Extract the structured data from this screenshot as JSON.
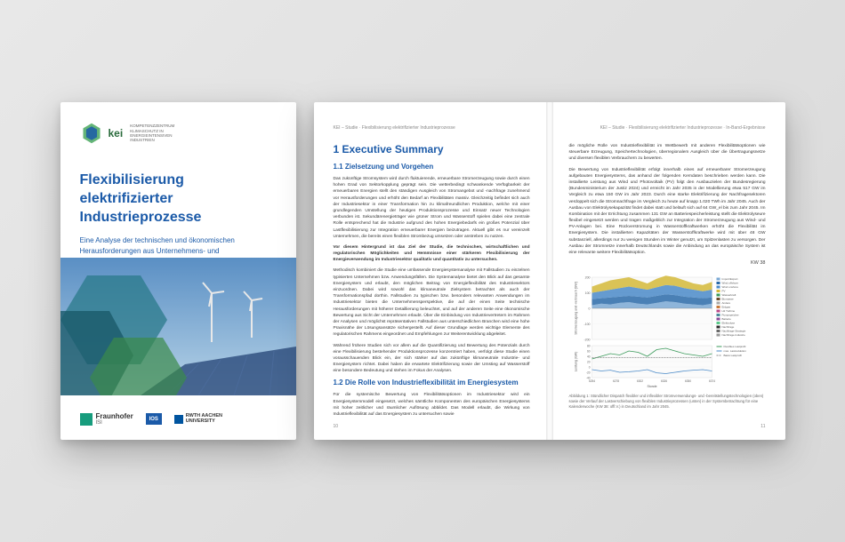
{
  "cover": {
    "logo_text": "kei",
    "logo_sub1": "KOMPETENZZENTRUM",
    "logo_sub2": "KLIMASCHUTZ IN",
    "logo_sub3": "ENERGIEINTENSIVEN",
    "logo_sub4": "INDUSTRIEN",
    "title": "Flexibilisierung elektrifizierter Industrieprozesse",
    "subtitle": "Eine Analyse der technischen und ökonomischen Herausforderungen aus Unternehmens- und Systemperspektive",
    "logos": {
      "fraunhofer": "Fraunhofer",
      "fraunhofer_sub": "ISI",
      "ios": "IOS",
      "rwth1": "RWTH AACHEN",
      "rwth2": "UNIVERSITY"
    },
    "hex_colors": {
      "outer": "#4aa860",
      "inner": "#1b5aa8"
    },
    "image_colors": {
      "sky_top": "#5a8fc4",
      "sky_bot": "#b8d4e8",
      "hex1": "#2a7a8a",
      "hex2": "#1a5a6a",
      "hex3": "#3a8a4a",
      "turbine": "#e8e8e8",
      "panel": "#2a4a7a"
    }
  },
  "left_page": {
    "header": "KEI – Studie · Flexibilisierung elektrifizierter Industrieprozesse",
    "h1": "1  Executive Summary",
    "h2a": "1.1  Zielsetzung und Vorgehen",
    "p1": "Das zukünftige Stromsystem wird durch fluktuierende, erneuerbare Stromerzeugung sowie durch einen hohen Grad von Sektorkopplung geprägt sein. Die wetterbedingt schwankende Verfügbarkeit der erneuerbaren Energien stellt den ständigen Ausgleich von Stromangebot und -nachfrage zunehmend vor Herausforderungen und erhöht den Bedarf an Flexibilitäten massiv. Gleichzeitig befindet sich auch der Industriesektor in einer Transformation hin zu klimafreundlichen Produktion, welche mit einer grundlegenden Umstellung der heutigen Produktionsprozesse und Einsatz neuer Technologien verbunden ist. Sekundärenergieträger wie grüner Strom und Wasserstoff spielen dabei eine zentrale Rolle entsprechend hat die Industrie aufgrund des hohen Energiebedarfs ein großes Potenzial über Lastflexibilisierung zur Integration erneuerbarer Energien beizutragen. Aktuell gibt es nur vereinzelt Unternehmen, die bereits einen flexiblen Strombezug umsetzen oder anstreben zu nutzen.",
    "p2": "Vor diesem Hintergrund ist das Ziel der Studie, die technischen, wirtschaftlichen und regulatorischen Möglichkeiten und Hemmnisse einer stärkeren Flexibilisierung der Energieverwendung im Industriesektor qualitativ und quantitativ zu untersuchen.",
    "p3": "Methodisch kombiniert die Studie eine umfassende Energiesystemanalyse mit Fallstudien zu einzelnen typisierten Unternehmen bzw. Anwendungsfällen. Die Systemanalyse bietet den Blick auf das gesamte Energiesystem und erlaubt, den möglichen Beitrag von Energieflexibilität des Industriesektors einzuordnen. Dabei wird sowohl das klimaneutrale Zielsystem betrachtet als auch der Transformationspfad dorthin. Fallstudien zu typischen bzw. besonders relevanten Anwendungen im Industriesektor bieten die Unternehmensperspektive, die auf der einen Seite technische Herausforderungen mit höherer Detaillierung beleuchtet, und auf der anderen Seite eine ökonomische Bewertung aus Sicht der Unternehmen erlaubt. Über die Einbindung von Industrievertretern im Rahmen der Analysen und möglichst repräsentativen Fallstudien aus unterschiedlichen Branchen wird eine hohe Praxisnähe der Lösungsansätze sichergestellt. Auf dieser Grundlage werden wichtige Elemente des regulatorischen Rahmens eingeordnet und Empfehlungen zur Weiterentwicklung abgeleitet.",
    "p4": "Während frühere Studien sich vor allem auf die Quantifizierung und Bewertung des Potenzials durch eine Flexibilisierung bestehender Produktionsprozesse konzentriert haben, verfolgt diese Studie einen vorausschauenden Blick ein, der sich stärker auf das zukünftige klimaneutrale Industrie- und Energiesystem richtet. Dabei haben die erwartete Elektrifizierung sowie der Umstieg auf Wasserstoff eine besondere Bedeutung und stehen im Fokus der Analysen.",
    "h2b": "1.2  Die Rolle von Industrieflexibilität im Energiesystem",
    "p5": "Für die systemische Bewertung von Flexibilitätsoptionen im Industriesektor wird ein Energiesystemmodell eingesetzt, welches sämtliche Komponenten des europäischen Energiesystems mit hoher zeitlicher und räumlicher Auflösung abbildet. Das Modell erlaubt, die Wirkung von Industrieflexibilität auf das Energiesystem zu untersuchen sowie",
    "pagenum": "10"
  },
  "right_page": {
    "header": "KEI – Studie · Flexibilisierung elektrifizierter Industrieprozesse · In-Band-Ergebnisse",
    "p1": "die mögliche Rolle von Industrieflexibilität im Wettbewerb mit anderen Flexibilitätsoptionen wie steuerbare Erzeugung, Speichertechnologien, überregionalem Ausgleich über die Übertragungsnetze und diversen flexiblen Verbrauchern zu bewerten.",
    "p2": "Die Bewertung von Industrieflexibilität erfolgt innerhalb eines auf erneuerbarer Stromerzeugung aufgebauten Energiesystems, das anhand der folgenden Kerndaten beschrieben werden kann. Die installierte Leistung aus Wind und Photovoltaik (PV) folgt den Ausbauzielen der Bundesregierung (Bundesministerium der Justiz 2024) und erreicht im Jahr 2035 in der Modellierung etwa 517 GW im Vergleich zu etwa 150 GW im Jahr 2023. Durch eine starke Elektrifizierung der Nachfragesektoren verdoppelt sich die Stromnachfrage im Vergleich zu heute auf knapp 1.020 TWh im Jahr 2045. Auch der Ausbau von Elektrolysekapazität findet dabei statt und beläuft sich auf 64 GW_el bis zum Jahr 2045. Im Kombination mit der Errichtung zusammen 131 GW an Batteriespeicherleistung stellt die Elektrolyseure flexibel eingesetzt werden und tragen maßgeblich zur Integration der Stromerzeugung aus Wind- und PV-Anlagen bei. Eine Rückverstromung in Wasserstoffkraftwerken erhöht die Flexibilität im Energiesystem. Die installierten Kapazitäten der Wasserstoffkraftwerke wird mit über 48 GW substanziell, allerdings nur zu wenigen Stunden im Winter genutzt, um Spitzenlasten zu versorgen. Der Ausbau der Stromnetze innerhalb Deutschlands sowie die Anbindung an das europäische System ist eine relevante weitere Flexibilitätsoption.",
    "chart": {
      "title": "KW 38",
      "legend": [
        "Import/Export",
        "Wind offshore",
        "Wind onshore",
        "PV",
        "Wasserkraft",
        "Biomasse",
        "Andere",
        "Erdgas",
        "H2 Turbine",
        "Pumpspeicher",
        "Batterie",
        "Elektrolyse",
        "Nachfrage",
        "Nachfrage-Strategie",
        "Nachfrage-Industrie"
      ],
      "legend_colors": [
        "#7aa8d4",
        "#2a6aa8",
        "#4a8ac8",
        "#d4b838",
        "#3a9a5a",
        "#6a4a2a",
        "#a8a8a8",
        "#c87a3a",
        "#b84a8a",
        "#4a8a9a",
        "#8a4a9a",
        "#5ac88a",
        "#2a2a2a",
        "#6a6a6a",
        "#9a9a9a"
      ],
      "x_labels": [
        "6254",
        "6278",
        "6302",
        "6326",
        "6350",
        "6374"
      ],
      "x_axis": "Stunde",
      "y1_label": "Stromerzeugung und -verbrauch [GW]",
      "y1_ticks": [
        -200,
        -100,
        0,
        100,
        200
      ],
      "y2_label": "Leistung (GW)",
      "y2_ticks": [
        -40,
        -20,
        0,
        20,
        40,
        60,
        80
      ],
      "lower_legend": [
        "Flexibles Lastprofil",
        "max. Lastreduktion",
        "Basis Lastprofil"
      ],
      "lower_colors": [
        "#3a9a5a",
        "#4a8ac8",
        "#888888"
      ],
      "series_area": [
        {
          "color": "#7aa8d4",
          "values": [
            20,
            30,
            25,
            35,
            40,
            30,
            25,
            35,
            45,
            40,
            30,
            25,
            20,
            30
          ]
        },
        {
          "color": "#2a6aa8",
          "values": [
            60,
            65,
            70,
            75,
            80,
            75,
            70,
            80,
            90,
            85,
            75,
            70,
            65,
            70
          ]
        },
        {
          "color": "#4a8ac8",
          "values": [
            100,
            110,
            120,
            130,
            140,
            130,
            120,
            135,
            150,
            145,
            130,
            120,
            110,
            120
          ]
        },
        {
          "color": "#d4b838",
          "values": [
            140,
            160,
            180,
            190,
            200,
            180,
            160,
            190,
            210,
            200,
            180,
            160,
            150,
            170
          ]
        }
      ],
      "lower_series": {
        "flex": [
          30,
          40,
          50,
          45,
          60,
          55,
          40,
          65,
          70,
          60,
          50,
          45,
          40,
          50
        ],
        "max": [
          -10,
          -15,
          -12,
          -20,
          -18,
          -15,
          -10,
          -22,
          -25,
          -20,
          -15,
          -12,
          -10,
          -15
        ],
        "base": [
          35,
          35,
          35,
          35,
          35,
          35,
          35,
          35,
          35,
          35,
          35,
          35,
          35,
          35
        ]
      }
    },
    "caption": "Abbildung 1: Stündlicher Dispatch flexibler und inflexibler Stromverwendungs- und -bereitstellungstechnologien (oben) sowie der Verlauf der Lastverschiebung von flexiblen Industrieprozessen (unten) in der Systembetrachtung für eine Kalenderwoche (KW 38: offl.V.) in Deutschland im Jahr 2045.",
    "pagenum": "11"
  }
}
